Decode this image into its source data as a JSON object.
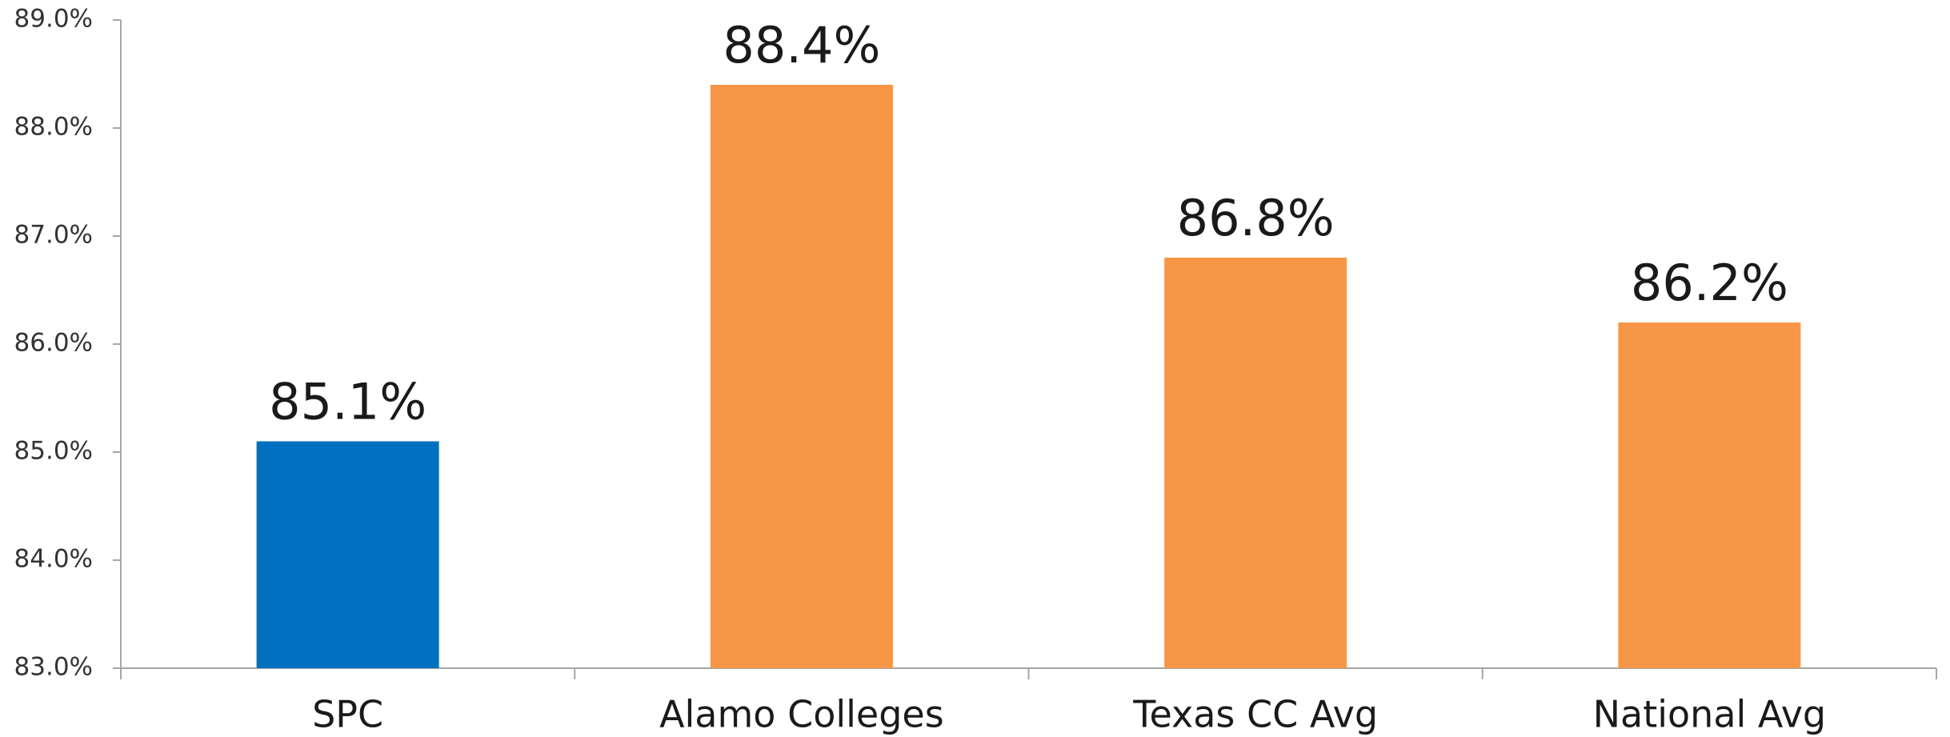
{
  "chart_data": {
    "type": "bar",
    "categories": [
      "SPC",
      "Alamo Colleges",
      "Texas CC Avg",
      "National Avg"
    ],
    "values": [
      85.1,
      88.4,
      86.8,
      86.2
    ],
    "value_labels": [
      "85.1%",
      "88.4%",
      "86.8%",
      "86.2%"
    ],
    "colors": [
      "#0070c0",
      "#f79646",
      "#f79646",
      "#f79646"
    ],
    "ylim": [
      83,
      89
    ],
    "yticks": [
      {
        "value": 83,
        "label": "83.0%"
      },
      {
        "value": 84,
        "label": "84.0%"
      },
      {
        "value": 85,
        "label": "85.0%"
      },
      {
        "value": 86,
        "label": "86.0%"
      },
      {
        "value": 87,
        "label": "87.0%"
      },
      {
        "value": 88,
        "label": "88.0%"
      },
      {
        "value": 89,
        "label": "89.0%"
      }
    ],
    "grid": false
  }
}
